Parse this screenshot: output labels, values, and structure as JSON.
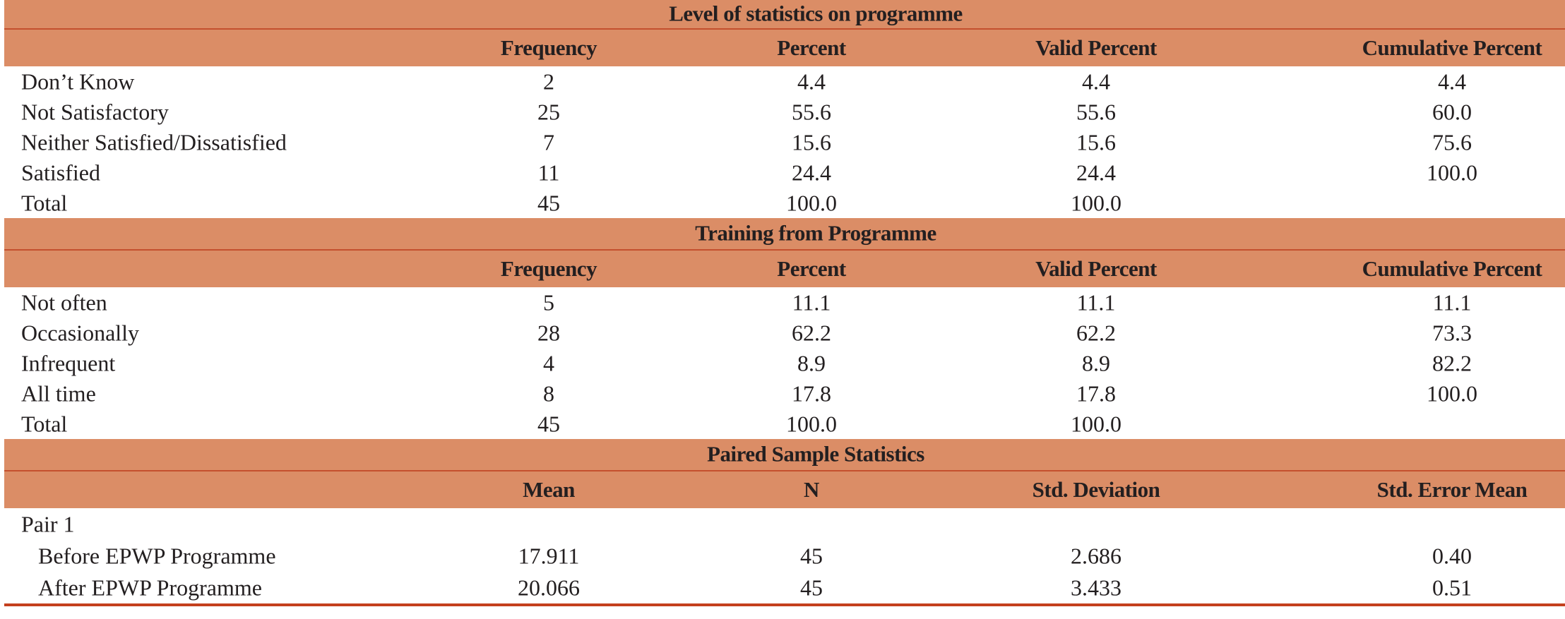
{
  "colors": {
    "band": "#DB8D66",
    "rule": "#C4401E"
  },
  "tables": [
    {
      "title": "Level of statistics on programme",
      "headers": [
        "Frequency",
        "Percent",
        "Valid Percent",
        "Cumulative Percent"
      ],
      "rows": [
        {
          "label": "Don’t Know",
          "values": [
            "2",
            "4.4",
            "4.4",
            "4.4"
          ]
        },
        {
          "label": "Not Satisfactory",
          "values": [
            "25",
            "55.6",
            "55.6",
            "60.0"
          ]
        },
        {
          "label": "Neither Satisfied/Dissatisfied",
          "values": [
            "7",
            "15.6",
            "15.6",
            "75.6"
          ]
        },
        {
          "label": "Satisfied",
          "values": [
            "11",
            "24.4",
            "24.4",
            "100.0"
          ]
        },
        {
          "label": "Total",
          "values": [
            "45",
            "100.0",
            "100.0",
            ""
          ]
        }
      ]
    },
    {
      "title": "Training from Programme",
      "headers": [
        "Frequency",
        "Percent",
        "Valid Percent",
        "Cumulative Percent"
      ],
      "rows": [
        {
          "label": "Not often",
          "values": [
            "5",
            "11.1",
            "11.1",
            "11.1"
          ]
        },
        {
          "label": "Occasionally",
          "values": [
            "28",
            "62.2",
            "62.2",
            "73.3"
          ]
        },
        {
          "label": "Infrequent",
          "values": [
            "4",
            "8.9",
            "8.9",
            "82.2"
          ]
        },
        {
          "label": "All time",
          "values": [
            "8",
            "17.8",
            "17.8",
            "100.0"
          ]
        },
        {
          "label": "Total",
          "values": [
            "45",
            "100.0",
            "100.0",
            ""
          ]
        }
      ]
    },
    {
      "title": "Paired Sample Statistics",
      "headers": [
        "Mean",
        "N",
        "Std. Deviation",
        "Std. Error Mean"
      ],
      "rows": [
        {
          "label": "Pair 1",
          "values": [
            "",
            "",
            "",
            ""
          ]
        },
        {
          "label": "Before EPWP Programme",
          "values": [
            "17.911",
            "45",
            "2.686",
            "0.40"
          ]
        },
        {
          "label": "After EPWP Programme",
          "values": [
            "20.066",
            "45",
            "3.433",
            "0.51"
          ]
        }
      ]
    }
  ]
}
